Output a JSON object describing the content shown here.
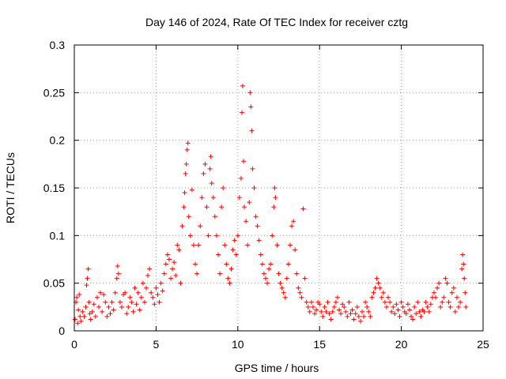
{
  "chart_data": {
    "type": "scatter",
    "title": "Day 146 of 2024, Rate Of TEC Index for receiver cztg",
    "xlabel": "GPS time / hours",
    "ylabel": "ROTI / TECUs",
    "xlim": [
      0,
      25
    ],
    "ylim": [
      0,
      0.3
    ],
    "xticks": [
      0,
      5,
      10,
      15,
      20,
      25
    ],
    "xtick_labels": [
      "0",
      "5",
      "10",
      "15",
      "20",
      "25"
    ],
    "yticks": [
      0,
      0.05,
      0.1,
      0.15,
      0.2,
      0.25,
      0.3
    ],
    "ytick_labels": [
      "0",
      "0.05",
      "0.1",
      "0.15",
      "0.2",
      "0.25",
      "0.3"
    ],
    "grid": true,
    "marker": "+",
    "color": "#ff0000",
    "series": [
      {
        "name": "ROTI",
        "points": [
          [
            0.05,
            0.012
          ],
          [
            0.1,
            0.03
          ],
          [
            0.15,
            0.035
          ],
          [
            0.2,
            0.008
          ],
          [
            0.25,
            0.022
          ],
          [
            0.3,
            0.038
          ],
          [
            0.35,
            0.015
          ],
          [
            0.4,
            0.01
          ],
          [
            0.5,
            0.02
          ],
          [
            0.6,
            0.015
          ],
          [
            0.7,
            0.025
          ],
          [
            0.75,
            0.048
          ],
          [
            0.8,
            0.055
          ],
          [
            0.85,
            0.065
          ],
          [
            0.9,
            0.03
          ],
          [
            0.95,
            0.018
          ],
          [
            1.0,
            0.012
          ],
          [
            1.1,
            0.02
          ],
          [
            1.2,
            0.028
          ],
          [
            1.3,
            0.015
          ],
          [
            1.4,
            0.035
          ],
          [
            1.5,
            0.025
          ],
          [
            1.6,
            0.04
          ],
          [
            1.7,
            0.02
          ],
          [
            1.8,
            0.038
          ],
          [
            1.9,
            0.03
          ],
          [
            2.0,
            0.015
          ],
          [
            2.1,
            0.025
          ],
          [
            2.2,
            0.018
          ],
          [
            2.3,
            0.03
          ],
          [
            2.4,
            0.022
          ],
          [
            2.5,
            0.04
          ],
          [
            2.6,
            0.055
          ],
          [
            2.65,
            0.068
          ],
          [
            2.7,
            0.06
          ],
          [
            2.8,
            0.03
          ],
          [
            2.9,
            0.025
          ],
          [
            3.0,
            0.038
          ],
          [
            3.1,
            0.04
          ],
          [
            3.2,
            0.018
          ],
          [
            3.3,
            0.025
          ],
          [
            3.4,
            0.035
          ],
          [
            3.5,
            0.03
          ],
          [
            3.6,
            0.02
          ],
          [
            3.7,
            0.045
          ],
          [
            3.8,
            0.028
          ],
          [
            3.9,
            0.04
          ],
          [
            4.0,
            0.022
          ],
          [
            4.1,
            0.035
          ],
          [
            4.2,
            0.05
          ],
          [
            4.3,
            0.03
          ],
          [
            4.4,
            0.045
          ],
          [
            4.5,
            0.058
          ],
          [
            4.6,
            0.065
          ],
          [
            4.7,
            0.04
          ],
          [
            4.8,
            0.035
          ],
          [
            4.9,
            0.028
          ],
          [
            5.0,
            0.045
          ],
          [
            5.1,
            0.038
          ],
          [
            5.2,
            0.03
          ],
          [
            5.3,
            0.05
          ],
          [
            5.4,
            0.042
          ],
          [
            5.5,
            0.06
          ],
          [
            5.6,
            0.07
          ],
          [
            5.7,
            0.08
          ],
          [
            5.8,
            0.075
          ],
          [
            5.9,
            0.055
          ],
          [
            6.0,
            0.065
          ],
          [
            6.1,
            0.072
          ],
          [
            6.2,
            0.058
          ],
          [
            6.3,
            0.09
          ],
          [
            6.4,
            0.085
          ],
          [
            6.5,
            0.05
          ],
          [
            6.6,
            0.11
          ],
          [
            6.7,
            0.13
          ],
          [
            6.75,
            0.145
          ],
          [
            6.8,
            0.165
          ],
          [
            6.85,
            0.175
          ],
          [
            6.9,
            0.19
          ],
          [
            6.95,
            0.197
          ],
          [
            7.0,
            0.12
          ],
          [
            7.1,
            0.1
          ],
          [
            7.2,
            0.148
          ],
          [
            7.3,
            0.09
          ],
          [
            7.4,
            0.07
          ],
          [
            7.5,
            0.06
          ],
          [
            7.6,
            0.09
          ],
          [
            7.7,
            0.11
          ],
          [
            7.8,
            0.14
          ],
          [
            7.9,
            0.165
          ],
          [
            8.0,
            0.175
          ],
          [
            8.1,
            0.13
          ],
          [
            8.2,
            0.1
          ],
          [
            8.3,
            0.17
          ],
          [
            8.35,
            0.183
          ],
          [
            8.4,
            0.155
          ],
          [
            8.5,
            0.14
          ],
          [
            8.6,
            0.12
          ],
          [
            8.7,
            0.1
          ],
          [
            8.8,
            0.08
          ],
          [
            8.9,
            0.06
          ],
          [
            9.0,
            0.13
          ],
          [
            9.1,
            0.15
          ],
          [
            9.2,
            0.09
          ],
          [
            9.3,
            0.07
          ],
          [
            9.4,
            0.055
          ],
          [
            9.5,
            0.05
          ],
          [
            9.6,
            0.065
          ],
          [
            9.7,
            0.085
          ],
          [
            9.8,
            0.095
          ],
          [
            9.9,
            0.08
          ],
          [
            10.0,
            0.1
          ],
          [
            10.1,
            0.14
          ],
          [
            10.2,
            0.16
          ],
          [
            10.25,
            0.229
          ],
          [
            10.3,
            0.257
          ],
          [
            10.35,
            0.178
          ],
          [
            10.4,
            0.13
          ],
          [
            10.5,
            0.115
          ],
          [
            10.6,
            0.09
          ],
          [
            10.7,
            0.135
          ],
          [
            10.75,
            0.25
          ],
          [
            10.8,
            0.235
          ],
          [
            10.85,
            0.21
          ],
          [
            10.9,
            0.17
          ],
          [
            11.0,
            0.15
          ],
          [
            11.1,
            0.12
          ],
          [
            11.2,
            0.11
          ],
          [
            11.3,
            0.095
          ],
          [
            11.4,
            0.08
          ],
          [
            11.5,
            0.07
          ],
          [
            11.6,
            0.06
          ],
          [
            11.7,
            0.055
          ],
          [
            11.8,
            0.05
          ],
          [
            11.9,
            0.065
          ],
          [
            12.0,
            0.07
          ],
          [
            12.1,
            0.1
          ],
          [
            12.2,
            0.13
          ],
          [
            12.25,
            0.15
          ],
          [
            12.3,
            0.14
          ],
          [
            12.4,
            0.09
          ],
          [
            12.5,
            0.06
          ],
          [
            12.6,
            0.05
          ],
          [
            12.7,
            0.045
          ],
          [
            12.8,
            0.04
          ],
          [
            12.9,
            0.035
          ],
          [
            13.0,
            0.055
          ],
          [
            13.1,
            0.07
          ],
          [
            13.2,
            0.09
          ],
          [
            13.3,
            0.11
          ],
          [
            13.4,
            0.115
          ],
          [
            13.5,
            0.085
          ],
          [
            13.6,
            0.06
          ],
          [
            13.7,
            0.045
          ],
          [
            13.8,
            0.04
          ],
          [
            13.9,
            0.035
          ],
          [
            14.0,
            0.128
          ],
          [
            14.1,
            0.055
          ],
          [
            14.2,
            0.03
          ],
          [
            14.3,
            0.025
          ],
          [
            14.4,
            0.02
          ],
          [
            14.5,
            0.03
          ],
          [
            14.6,
            0.025
          ],
          [
            14.7,
            0.018
          ],
          [
            14.8,
            0.022
          ],
          [
            14.9,
            0.03
          ],
          [
            15.0,
            0.028
          ],
          [
            15.1,
            0.02
          ],
          [
            15.2,
            0.015
          ],
          [
            15.3,
            0.025
          ],
          [
            15.4,
            0.02
          ],
          [
            15.5,
            0.03
          ],
          [
            15.6,
            0.018
          ],
          [
            15.7,
            0.012
          ],
          [
            15.8,
            0.02
          ],
          [
            15.9,
            0.025
          ],
          [
            16.0,
            0.03
          ],
          [
            16.1,
            0.035
          ],
          [
            16.2,
            0.022
          ],
          [
            16.3,
            0.018
          ],
          [
            16.4,
            0.028
          ],
          [
            16.5,
            0.025
          ],
          [
            16.6,
            0.02
          ],
          [
            16.7,
            0.015
          ],
          [
            16.8,
            0.03
          ],
          [
            16.9,
            0.018
          ],
          [
            17.0,
            0.022
          ],
          [
            17.1,
            0.012
          ],
          [
            17.2,
            0.018
          ],
          [
            17.3,
            0.025
          ],
          [
            17.4,
            0.015
          ],
          [
            17.5,
            0.01
          ],
          [
            17.6,
            0.02
          ],
          [
            17.7,
            0.015
          ],
          [
            17.8,
            0.03
          ],
          [
            17.9,
            0.025
          ],
          [
            18.0,
            0.02
          ],
          [
            18.1,
            0.015
          ],
          [
            18.2,
            0.035
          ],
          [
            18.3,
            0.04
          ],
          [
            18.4,
            0.045
          ],
          [
            18.5,
            0.055
          ],
          [
            18.6,
            0.05
          ],
          [
            18.7,
            0.045
          ],
          [
            18.8,
            0.035
          ],
          [
            18.9,
            0.04
          ],
          [
            19.0,
            0.03
          ],
          [
            19.1,
            0.025
          ],
          [
            19.2,
            0.035
          ],
          [
            19.3,
            0.03
          ],
          [
            19.4,
            0.02
          ],
          [
            19.5,
            0.025
          ],
          [
            19.6,
            0.018
          ],
          [
            19.7,
            0.028
          ],
          [
            19.8,
            0.022
          ],
          [
            19.9,
            0.015
          ],
          [
            20.0,
            0.03
          ],
          [
            20.1,
            0.025
          ],
          [
            20.2,
            0.02
          ],
          [
            20.3,
            0.018
          ],
          [
            20.4,
            0.028
          ],
          [
            20.5,
            0.022
          ],
          [
            20.6,
            0.015
          ],
          [
            20.7,
            0.012
          ],
          [
            20.8,
            0.025
          ],
          [
            20.9,
            0.018
          ],
          [
            21.0,
            0.03
          ],
          [
            21.1,
            0.02
          ],
          [
            21.2,
            0.015
          ],
          [
            21.3,
            0.022
          ],
          [
            21.4,
            0.02
          ],
          [
            21.5,
            0.03
          ],
          [
            21.6,
            0.025
          ],
          [
            21.7,
            0.02
          ],
          [
            21.8,
            0.028
          ],
          [
            21.9,
            0.035
          ],
          [
            22.0,
            0.04
          ],
          [
            22.1,
            0.035
          ],
          [
            22.2,
            0.045
          ],
          [
            22.3,
            0.05
          ],
          [
            22.4,
            0.025
          ],
          [
            22.5,
            0.03
          ],
          [
            22.6,
            0.035
          ],
          [
            22.7,
            0.055
          ],
          [
            22.8,
            0.05
          ],
          [
            22.9,
            0.03
          ],
          [
            23.0,
            0.025
          ],
          [
            23.1,
            0.04
          ],
          [
            23.2,
            0.045
          ],
          [
            23.3,
            0.02
          ],
          [
            23.4,
            0.035
          ],
          [
            23.5,
            0.025
          ],
          [
            23.6,
            0.03
          ],
          [
            23.7,
            0.065
          ],
          [
            23.75,
            0.08
          ],
          [
            23.8,
            0.07
          ],
          [
            23.85,
            0.055
          ],
          [
            23.9,
            0.04
          ],
          [
            23.95,
            0.025
          ]
        ]
      }
    ]
  }
}
